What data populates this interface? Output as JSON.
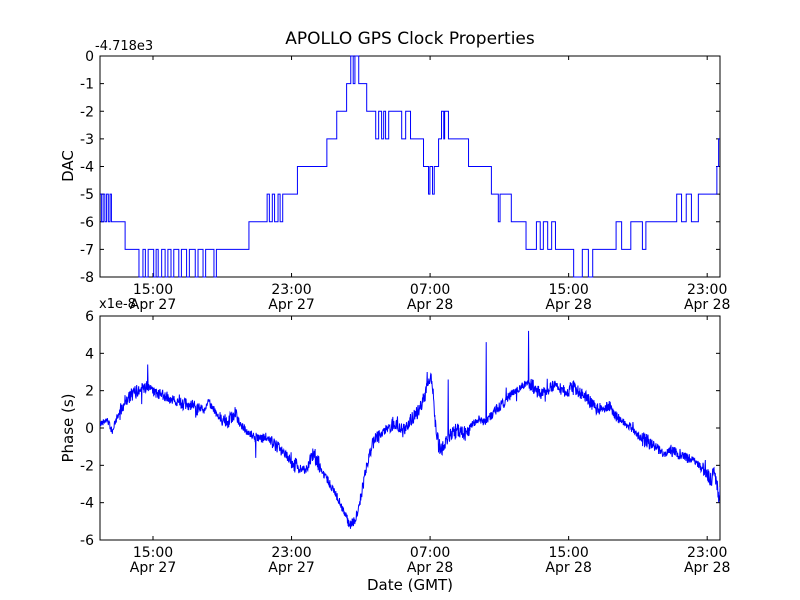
{
  "figure": {
    "title": "APOLLO GPS Clock Properties",
    "background_color": "#ffffff",
    "line_color": "#0000ff",
    "axis_color": "#000000"
  },
  "chart_data": [
    {
      "type": "line",
      "name": "dac",
      "title": "APOLLO GPS Clock Properties",
      "ylabel": "DAC",
      "y_offset_label": "-4.718e3",
      "draw_style": "steps-post",
      "grid": false,
      "legend": null,
      "ylim": [
        -8,
        0
      ],
      "yticks": [
        0,
        -1,
        -2,
        -3,
        -4,
        -5,
        -6,
        -7,
        -8
      ],
      "x_range_hours": [
        0,
        35.8
      ],
      "xticks": [
        {
          "t": 3.06,
          "time": "15:00",
          "date": "Apr 27"
        },
        {
          "t": 11.06,
          "time": "23:00",
          "date": "Apr 27"
        },
        {
          "t": 19.06,
          "time": "07:00",
          "date": "Apr 28"
        },
        {
          "t": 27.06,
          "time": "15:00",
          "date": "Apr 28"
        },
        {
          "t": 35.06,
          "time": "23:00",
          "date": "Apr 28"
        }
      ],
      "step_points": [
        [
          0.0,
          -5
        ],
        [
          0.08,
          -6
        ],
        [
          0.18,
          -5
        ],
        [
          0.28,
          -6
        ],
        [
          0.38,
          -5
        ],
        [
          0.48,
          -6
        ],
        [
          0.58,
          -5
        ],
        [
          0.66,
          -6
        ],
        [
          1.45,
          -7
        ],
        [
          2.25,
          -8
        ],
        [
          2.48,
          -7
        ],
        [
          2.62,
          -8
        ],
        [
          2.78,
          -7
        ],
        [
          3.1,
          -8
        ],
        [
          3.24,
          -7
        ],
        [
          3.36,
          -8
        ],
        [
          3.56,
          -7
        ],
        [
          3.76,
          -8
        ],
        [
          3.92,
          -7
        ],
        [
          4.1,
          -8
        ],
        [
          4.26,
          -7
        ],
        [
          4.55,
          -8
        ],
        [
          4.7,
          -7
        ],
        [
          5.0,
          -8
        ],
        [
          5.16,
          -7
        ],
        [
          5.5,
          -8
        ],
        [
          5.66,
          -7
        ],
        [
          5.95,
          -8
        ],
        [
          6.1,
          -7
        ],
        [
          6.58,
          -8
        ],
        [
          6.72,
          -7
        ],
        [
          8.6,
          -6
        ],
        [
          9.65,
          -5
        ],
        [
          9.78,
          -6
        ],
        [
          9.95,
          -5
        ],
        [
          10.08,
          -6
        ],
        [
          10.28,
          -5
        ],
        [
          10.4,
          -6
        ],
        [
          10.55,
          -5
        ],
        [
          11.4,
          -4
        ],
        [
          13.1,
          -3
        ],
        [
          13.67,
          -2
        ],
        [
          14.24,
          -1
        ],
        [
          14.48,
          0
        ],
        [
          14.62,
          -1
        ],
        [
          14.72,
          0
        ],
        [
          14.94,
          -1
        ],
        [
          15.4,
          -2
        ],
        [
          15.92,
          -3
        ],
        [
          16.09,
          -2
        ],
        [
          16.26,
          -3
        ],
        [
          16.38,
          -2
        ],
        [
          16.49,
          -3
        ],
        [
          16.67,
          -2
        ],
        [
          17.42,
          -3
        ],
        [
          17.65,
          -2
        ],
        [
          17.93,
          -3
        ],
        [
          18.68,
          -4
        ],
        [
          18.97,
          -5
        ],
        [
          19.05,
          -4
        ],
        [
          19.2,
          -5
        ],
        [
          19.3,
          -4
        ],
        [
          19.55,
          -3
        ],
        [
          19.72,
          -2
        ],
        [
          19.85,
          -3
        ],
        [
          19.9,
          -2
        ],
        [
          20.12,
          -3
        ],
        [
          21.28,
          -4
        ],
        [
          22.6,
          -5
        ],
        [
          23.0,
          -6
        ],
        [
          23.1,
          -5
        ],
        [
          23.75,
          -6
        ],
        [
          24.6,
          -7
        ],
        [
          25.2,
          -6
        ],
        [
          25.42,
          -7
        ],
        [
          25.6,
          -6
        ],
        [
          25.85,
          -7
        ],
        [
          26.08,
          -6
        ],
        [
          26.3,
          -7
        ],
        [
          27.35,
          -8
        ],
        [
          27.85,
          -7
        ],
        [
          28.2,
          -8
        ],
        [
          28.45,
          -7
        ],
        [
          29.8,
          -6
        ],
        [
          30.12,
          -7
        ],
        [
          30.65,
          -6
        ],
        [
          31.32,
          -7
        ],
        [
          31.52,
          -6
        ],
        [
          33.3,
          -5
        ],
        [
          33.58,
          -6
        ],
        [
          33.85,
          -5
        ],
        [
          34.15,
          -6
        ],
        [
          34.55,
          -5
        ],
        [
          35.62,
          -4
        ],
        [
          35.72,
          -3
        ],
        [
          35.8,
          -3
        ]
      ]
    },
    {
      "type": "line",
      "name": "phase",
      "ylabel": "Phase (s)",
      "scale_label": "x1e-8",
      "xlabel": "Date (GMT)",
      "grid": false,
      "legend": null,
      "ylim": [
        -6,
        6
      ],
      "yticks": [
        6,
        4,
        2,
        0,
        -2,
        -4,
        -6
      ],
      "x_range_hours": [
        0,
        35.8
      ],
      "xticks": [
        {
          "t": 3.06,
          "time": "15:00",
          "date": "Apr 27"
        },
        {
          "t": 11.06,
          "time": "23:00",
          "date": "Apr 27"
        },
        {
          "t": 19.06,
          "time": "07:00",
          "date": "Apr 28"
        },
        {
          "t": 27.06,
          "time": "15:00",
          "date": "Apr 28"
        },
        {
          "t": 35.06,
          "time": "23:00",
          "date": "Apr 28"
        }
      ],
      "trend_points": [
        [
          0.0,
          0.2
        ],
        [
          0.4,
          0.5
        ],
        [
          0.7,
          -0.2
        ],
        [
          1.0,
          0.6
        ],
        [
          1.5,
          1.5
        ],
        [
          2.0,
          1.9
        ],
        [
          2.4,
          2.1
        ],
        [
          2.7,
          2.2
        ],
        [
          3.1,
          1.9
        ],
        [
          3.6,
          1.8
        ],
        [
          4.2,
          1.5
        ],
        [
          4.8,
          1.3
        ],
        [
          5.4,
          1.1
        ],
        [
          6.0,
          1.0
        ],
        [
          6.3,
          1.4
        ],
        [
          6.8,
          0.6
        ],
        [
          7.4,
          0.4
        ],
        [
          7.8,
          0.8
        ],
        [
          8.2,
          0.1
        ],
        [
          8.7,
          -0.4
        ],
        [
          9.2,
          -0.6
        ],
        [
          9.6,
          -0.5
        ],
        [
          10.2,
          -1.0
        ],
        [
          10.8,
          -1.5
        ],
        [
          11.3,
          -2.0
        ],
        [
          11.9,
          -2.3
        ],
        [
          12.3,
          -1.3
        ],
        [
          12.7,
          -2.1
        ],
        [
          13.2,
          -2.9
        ],
        [
          13.7,
          -3.7
        ],
        [
          14.1,
          -4.5
        ],
        [
          14.4,
          -5.2
        ],
        [
          14.7,
          -5.0
        ],
        [
          15.0,
          -4.0
        ],
        [
          15.3,
          -2.5
        ],
        [
          15.6,
          -1.2
        ],
        [
          15.9,
          -0.6
        ],
        [
          16.3,
          -0.3
        ],
        [
          16.7,
          0.1
        ],
        [
          17.1,
          0.3
        ],
        [
          17.5,
          -0.2
        ],
        [
          17.9,
          0.4
        ],
        [
          18.3,
          0.8
        ],
        [
          18.7,
          1.6
        ],
        [
          19.0,
          2.4
        ],
        [
          19.15,
          2.6
        ],
        [
          19.35,
          0.5
        ],
        [
          19.55,
          -0.9
        ],
        [
          19.75,
          -1.1
        ],
        [
          20.0,
          -0.7
        ],
        [
          20.4,
          -0.3
        ],
        [
          20.7,
          -0.1
        ],
        [
          21.1,
          -0.3
        ],
        [
          21.5,
          0.2
        ],
        [
          21.9,
          0.5
        ],
        [
          22.2,
          0.3
        ],
        [
          22.6,
          0.7
        ],
        [
          23.0,
          1.1
        ],
        [
          23.4,
          1.4
        ],
        [
          23.8,
          1.9
        ],
        [
          24.2,
          2.1
        ],
        [
          24.6,
          2.4
        ],
        [
          25.0,
          2.2
        ],
        [
          25.4,
          1.8
        ],
        [
          25.8,
          2.0
        ],
        [
          26.2,
          2.3
        ],
        [
          26.6,
          2.1
        ],
        [
          27.0,
          1.9
        ],
        [
          27.4,
          2.2
        ],
        [
          27.8,
          1.8
        ],
        [
          28.2,
          1.5
        ],
        [
          28.6,
          1.1
        ],
        [
          29.0,
          1.0
        ],
        [
          29.4,
          1.2
        ],
        [
          29.8,
          0.6
        ],
        [
          30.2,
          0.3
        ],
        [
          30.6,
          0.1
        ],
        [
          31.0,
          -0.4
        ],
        [
          31.4,
          -0.6
        ],
        [
          31.8,
          -0.8
        ],
        [
          32.2,
          -1.1
        ],
        [
          32.6,
          -1.4
        ],
        [
          33.0,
          -1.2
        ],
        [
          33.4,
          -1.4
        ],
        [
          33.8,
          -1.6
        ],
        [
          34.2,
          -1.7
        ],
        [
          34.6,
          -2.0
        ],
        [
          35.0,
          -2.4
        ],
        [
          35.3,
          -2.9
        ],
        [
          35.45,
          -2.3
        ],
        [
          35.6,
          -2.8
        ],
        [
          35.75,
          -3.9
        ],
        [
          35.8,
          -3.0
        ]
      ],
      "spikes": [
        [
          2.75,
          3.4
        ],
        [
          9.0,
          -1.6
        ],
        [
          18.9,
          3.0
        ],
        [
          20.1,
          2.6
        ],
        [
          22.3,
          4.6
        ],
        [
          24.75,
          5.2
        ]
      ],
      "noise_amplitude": 0.32
    }
  ]
}
